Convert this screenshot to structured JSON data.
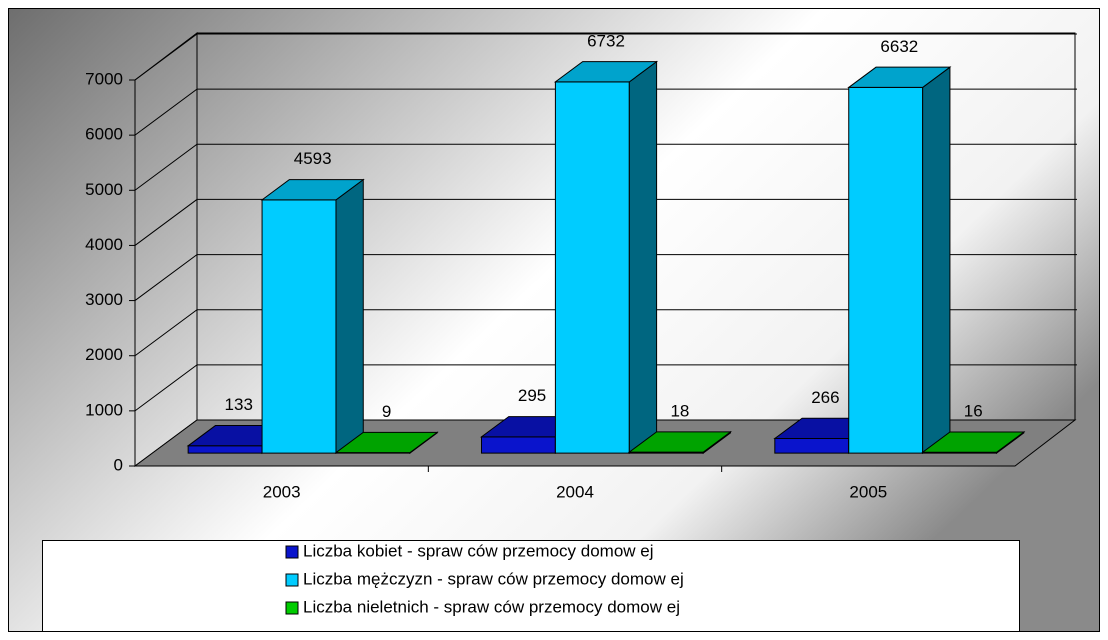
{
  "chart_data": {
    "type": "bar3d",
    "categories": [
      "2003",
      "2004",
      "2005"
    ],
    "series": [
      {
        "name": "Liczba kobiet - spraw ców  przemocy domow ej",
        "color": "#0a14cc",
        "values": [
          133,
          295,
          266
        ]
      },
      {
        "name": "Liczba mężczyzn - spraw ców  przemocy domow ej",
        "color": "#00ccff",
        "values": [
          4593,
          6732,
          6632
        ]
      },
      {
        "name": "Liczba nieletnich - spraw ców  przemocy domow ej",
        "color": "#00cc00",
        "values": [
          9,
          18,
          16
        ]
      }
    ],
    "ylim": [
      0,
      7000
    ],
    "yticks": [
      0,
      1000,
      2000,
      3000,
      4000,
      5000,
      6000,
      7000
    ],
    "grid": true,
    "legend": "bottom"
  }
}
